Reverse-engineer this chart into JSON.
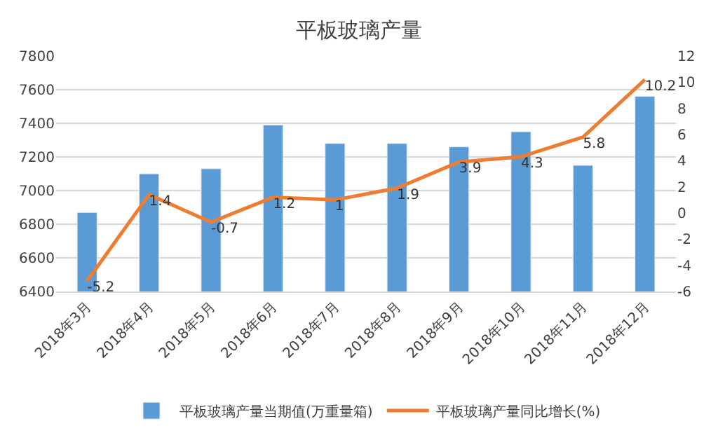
{
  "chart_data": {
    "type": "bar",
    "title": "平板玻璃产量",
    "categories": [
      "2018年3月",
      "2018年4月",
      "2018年5月",
      "2018年6月",
      "2018年7月",
      "2018年8月",
      "2018年9月",
      "2018年10月",
      "2018年11月",
      "2018年12月"
    ],
    "series": [
      {
        "name": "平板玻璃产量当期值(万重量箱)",
        "color": "#5b9bd5",
        "values": [
          6870,
          7100,
          7130,
          7390,
          7280,
          7280,
          7260,
          7350,
          7150,
          7560
        ]
      },
      {
        "name": "平板玻璃产量同比增长(%)",
        "type": "line",
        "axis": "y2",
        "color": "#ed7d31",
        "values": [
          -5.2,
          1.4,
          -0.7,
          1.2,
          1,
          1.9,
          3.9,
          4.3,
          5.8,
          10.2
        ],
        "data_labels": true
      }
    ],
    "ylim": [
      6400,
      7800
    ],
    "yticks": [
      6400,
      6600,
      6800,
      7000,
      7200,
      7400,
      7600,
      7800
    ],
    "y2lim": [
      -6,
      12
    ],
    "y2ticks": [
      -6,
      -4,
      -2,
      0,
      2,
      4,
      6,
      8,
      10,
      12
    ],
    "grid": "y",
    "legend": "bottom",
    "marker": "none",
    "line_style": "solid"
  }
}
